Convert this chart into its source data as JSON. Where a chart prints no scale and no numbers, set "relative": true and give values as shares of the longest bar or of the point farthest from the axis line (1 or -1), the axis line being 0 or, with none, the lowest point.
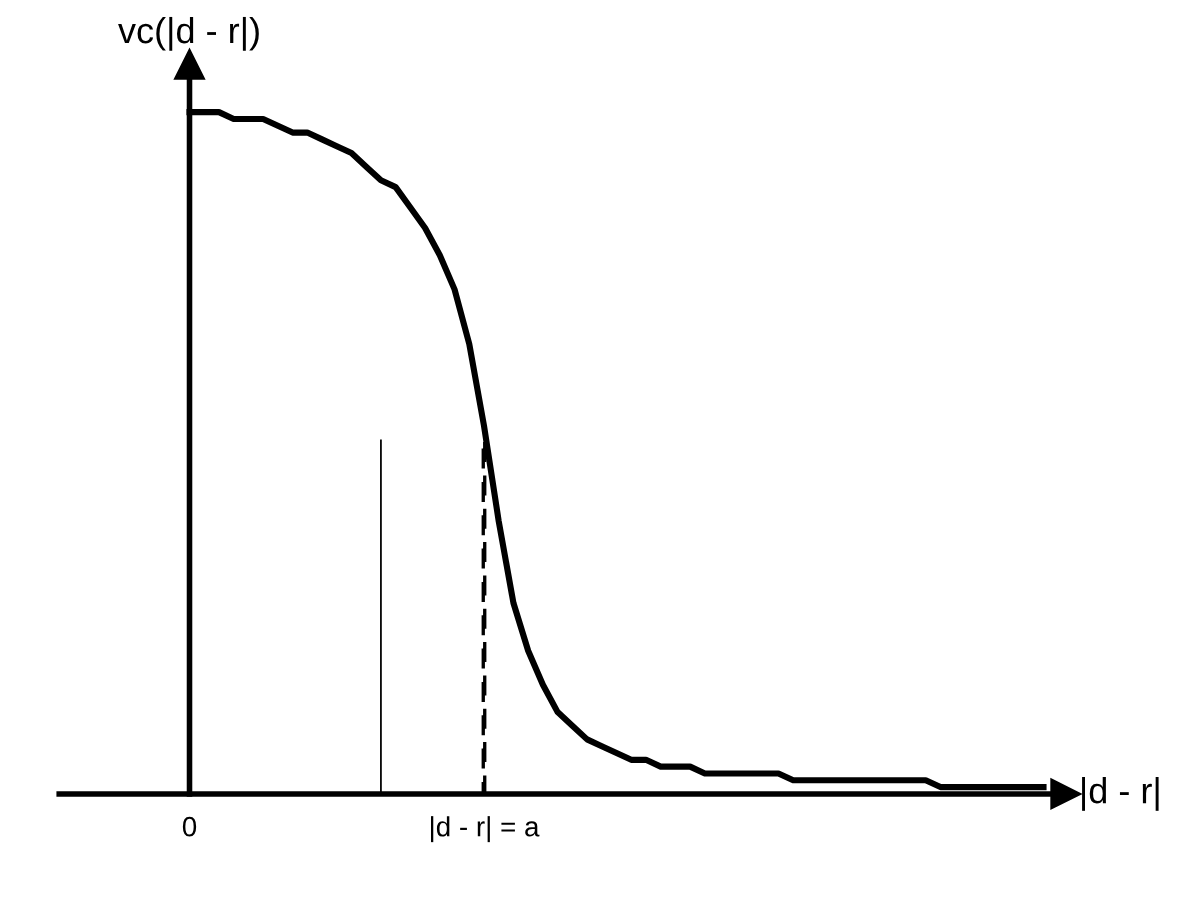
{
  "chart_data": {
    "type": "line",
    "relative": true,
    "ylabel": "vc(|d - r|)",
    "xlabel": "|d - r|",
    "categories": [
      "0",
      null,
      null,
      null,
      null,
      null,
      null,
      null,
      null,
      null,
      null,
      null,
      null,
      null,
      null,
      null,
      null,
      null,
      null,
      null,
      "|d - r| = a",
      null,
      null,
      null,
      null,
      null,
      null,
      null,
      null,
      null,
      null,
      null,
      null,
      null,
      null,
      null,
      null,
      null,
      null,
      null,
      null,
      null,
      null,
      null,
      null,
      null,
      null,
      null,
      null,
      null,
      null,
      null,
      null,
      null,
      null,
      null,
      null,
      null,
      null
    ],
    "grid": false,
    "legend": false,
    "marker": "none",
    "series": [
      {
        "color": "#000000",
        "line_style": "solid",
        "values": [
          1.0,
          1.0,
          1.0,
          0.99,
          0.99,
          0.99,
          0.98,
          0.97,
          0.97,
          0.96,
          0.95,
          0.94,
          0.92,
          0.9,
          0.89,
          0.86,
          0.83,
          0.79,
          0.74,
          0.66,
          0.54,
          0.4,
          0.28,
          0.21,
          0.16,
          0.12,
          0.1,
          0.08,
          0.07,
          0.06,
          0.05,
          0.05,
          0.04,
          0.04,
          0.04,
          0.03,
          0.03,
          0.03,
          0.03,
          0.03,
          0.03,
          0.02,
          0.02,
          0.02,
          0.02,
          0.02,
          0.02,
          0.02,
          0.02,
          0.02,
          0.02,
          0.01,
          0.01,
          0.01,
          0.01,
          0.01,
          0.01,
          0.01,
          0.01
        ]
      },
      {
        "type": "bar",
        "color": "#000000",
        "line_style": "solid",
        "values": [
          null,
          null,
          null,
          null,
          null,
          null,
          null,
          null,
          null,
          null,
          null,
          null,
          null,
          0.52,
          null,
          null,
          null,
          null,
          null,
          null,
          null,
          null,
          null,
          null,
          null,
          null,
          null,
          null,
          null,
          null,
          null,
          null,
          null,
          null,
          null,
          null,
          null,
          null,
          null,
          null,
          null,
          null,
          null,
          null,
          null,
          null,
          null,
          null,
          null,
          null,
          null,
          null,
          null,
          null,
          null,
          null,
          null,
          null,
          null
        ]
      },
      {
        "type": "bar",
        "color": "#000000",
        "line_style": "dashed",
        "values": [
          null,
          null,
          null,
          null,
          null,
          null,
          null,
          null,
          null,
          null,
          null,
          null,
          null,
          null,
          null,
          null,
          null,
          null,
          null,
          null,
          0.52,
          null,
          null,
          null,
          null,
          null,
          null,
          null,
          null,
          null,
          null,
          null,
          null,
          null,
          null,
          null,
          null,
          null,
          null,
          null,
          null,
          null,
          null,
          null,
          null,
          null,
          null,
          null,
          null,
          null,
          null,
          null,
          null,
          null,
          null,
          null,
          null,
          null,
          null
        ]
      }
    ]
  }
}
